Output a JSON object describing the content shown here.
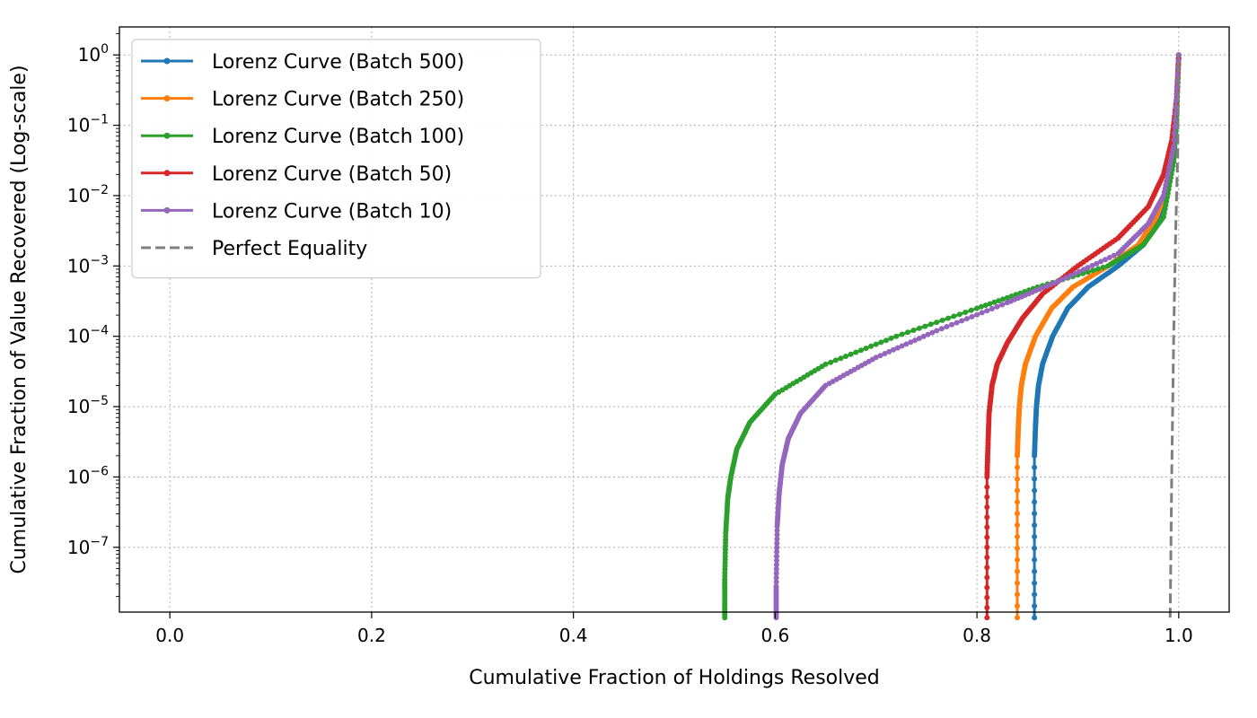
{
  "chart_data": {
    "type": "line",
    "title": "",
    "xlabel": "Cumulative Fraction of Holdings Resolved",
    "ylabel": "Cumulative Fraction of Value Recovered (Log-scale)",
    "yscale": "log",
    "xlim": [
      -0.05,
      1.05
    ],
    "ylim": [
      1.2e-08,
      2.5
    ],
    "xticks": [
      0.0,
      0.2,
      0.4,
      0.6,
      0.8,
      1.0
    ],
    "xtick_labels": [
      "0.0",
      "0.2",
      "0.4",
      "0.6",
      "0.8",
      "1.0"
    ],
    "yticks": [
      {
        "value": 1e-07,
        "base": "10",
        "exp": "−7"
      },
      {
        "value": 1e-06,
        "base": "10",
        "exp": "−6"
      },
      {
        "value": 1e-05,
        "base": "10",
        "exp": "−5"
      },
      {
        "value": 0.0001,
        "base": "10",
        "exp": "−4"
      },
      {
        "value": 0.001,
        "base": "10",
        "exp": "−3"
      },
      {
        "value": 0.01,
        "base": "10",
        "exp": "−2"
      },
      {
        "value": 0.1,
        "base": "10",
        "exp": "−1"
      },
      {
        "value": 1,
        "base": "10",
        "exp": "0"
      }
    ],
    "grid": true,
    "legend_position": "upper-left",
    "series": [
      {
        "name": "Lorenz Curve (Batch 500)",
        "color": "#1f77b4",
        "marker": true,
        "x": [
          0.857,
          0.857,
          0.858,
          0.859,
          0.861,
          0.865,
          0.875,
          0.89,
          0.91,
          0.94,
          0.965,
          0.98,
          0.99,
          0.995,
          0.998,
          1.0
        ],
        "y": [
          1e-08,
          2e-06,
          5e-06,
          1e-05,
          2e-05,
          4e-05,
          0.0001,
          0.00025,
          0.0005,
          0.001,
          0.002,
          0.005,
          0.015,
          0.05,
          0.2,
          1.0
        ]
      },
      {
        "name": "Lorenz Curve (Batch 250)",
        "color": "#ff7f0e",
        "marker": true,
        "x": [
          0.84,
          0.84,
          0.841,
          0.842,
          0.844,
          0.848,
          0.858,
          0.874,
          0.895,
          0.93,
          0.96,
          0.978,
          0.99,
          0.995,
          0.998,
          1.0
        ],
        "y": [
          1e-08,
          2e-06,
          5e-06,
          1e-05,
          2e-05,
          4e-05,
          0.0001,
          0.00025,
          0.0005,
          0.001,
          0.002,
          0.005,
          0.015,
          0.05,
          0.2,
          1.0
        ]
      },
      {
        "name": "Lorenz Curve (Batch 100)",
        "color": "#2ca02c",
        "marker": true,
        "x": [
          0.55,
          0.55,
          0.551,
          0.553,
          0.556,
          0.562,
          0.575,
          0.6,
          0.65,
          0.72,
          0.8,
          0.86,
          0.93,
          0.965,
          0.985,
          0.995,
          0.998,
          1.0
        ],
        "y": [
          1e-08,
          3.5e-08,
          1.6e-07,
          5e-07,
          1e-06,
          2.5e-06,
          6e-06,
          1.5e-05,
          4e-05,
          0.0001,
          0.00025,
          0.0005,
          0.001,
          0.002,
          0.005,
          0.03,
          0.12,
          1.0
        ]
      },
      {
        "name": "Lorenz Curve (Batch 50)",
        "color": "#d62728",
        "marker": true,
        "x": [
          0.81,
          0.81,
          0.811,
          0.812,
          0.815,
          0.82,
          0.83,
          0.845,
          0.865,
          0.9,
          0.94,
          0.97,
          0.985,
          0.993,
          0.998,
          1.0
        ],
        "y": [
          1e-08,
          1e-06,
          3e-06,
          8e-06,
          2e-05,
          4e-05,
          8e-05,
          0.00018,
          0.0004,
          0.001,
          0.0025,
          0.007,
          0.02,
          0.06,
          0.25,
          1.0
        ]
      },
      {
        "name": "Lorenz Curve (Batch 10)",
        "color": "#9467bd",
        "marker": true,
        "x": [
          0.601,
          0.601,
          0.602,
          0.604,
          0.607,
          0.613,
          0.625,
          0.65,
          0.7,
          0.76,
          0.83,
          0.88,
          0.94,
          0.97,
          0.985,
          0.995,
          1.0
        ],
        "y": [
          1e-08,
          2.8e-08,
          2e-07,
          6e-07,
          1.5e-06,
          3.5e-06,
          8e-06,
          2e-05,
          5e-05,
          0.00012,
          0.0003,
          0.0006,
          0.0015,
          0.004,
          0.01,
          0.05,
          1.0
        ]
      },
      {
        "name": "Perfect Equality",
        "color": "#7f7f7f",
        "dashed": true,
        "marker": false,
        "x": [
          0.9915,
          0.993,
          0.995,
          0.997,
          0.999,
          1.0
        ],
        "y": [
          1e-08,
          1e-06,
          0.0001,
          0.003,
          0.04,
          1.0
        ]
      }
    ]
  }
}
